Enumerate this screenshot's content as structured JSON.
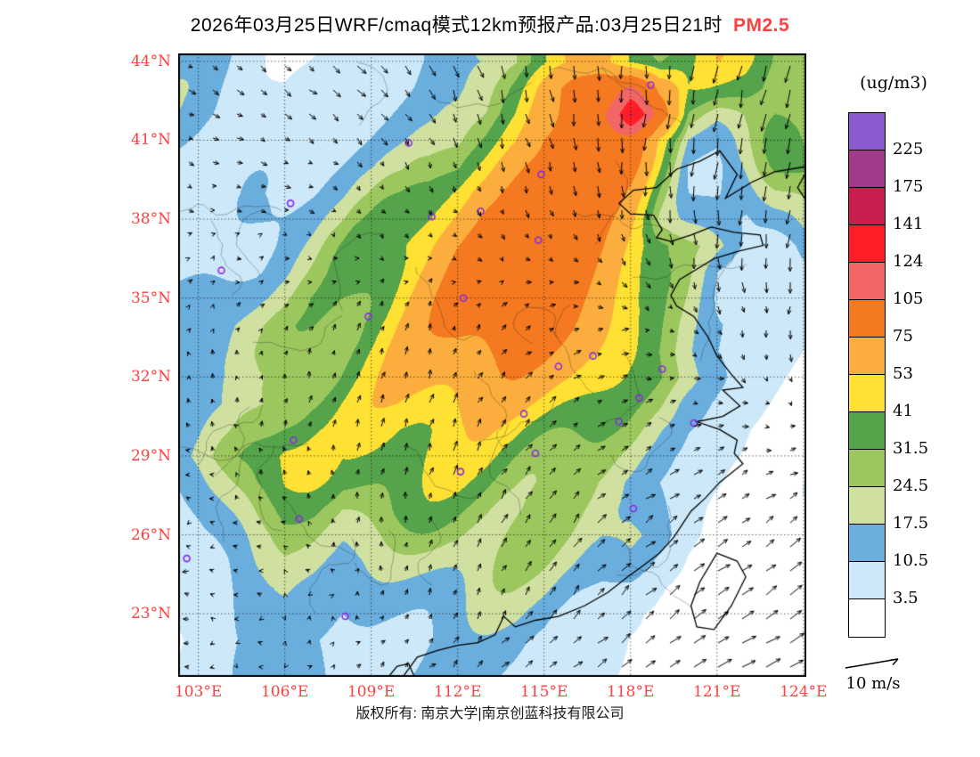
{
  "title": {
    "main": "2026年03月25日WRF/cmaq模式12km预报产品:03月25日21时",
    "species": "PM2.5"
  },
  "footer": {
    "copyright": "版权所有: 南京大学|南京创蓝科技有限公司"
  },
  "colors": {
    "accent_red": "#ff4040",
    "station_purple": "#8a2be2",
    "map_border": "#000000"
  },
  "colorbar": {
    "unit_label": "(ug/m3)",
    "tick_labels": [
      "225",
      "175",
      "141",
      "124",
      "105",
      "75",
      "53",
      "41",
      "31.5",
      "24.5",
      "17.5",
      "10.5",
      "3.5"
    ]
  },
  "axes": {
    "lat_ticks": [
      "44°N",
      "41°N",
      "38°N",
      "35°N",
      "32°N",
      "29°N",
      "26°N",
      "23°N"
    ],
    "lon_ticks": [
      "103°E",
      "106°E",
      "109°E",
      "112°E",
      "115°E",
      "118°E",
      "121°E",
      "124°E"
    ]
  },
  "wind_legend": {
    "label": "10 m/s"
  },
  "chart_data": {
    "type": "heatmap",
    "subtype": "filled-contour-forecast-map-with-wind-vectors",
    "title": "2026年03月25日WRF/cmaq模式12km预报产品:03月25日21时 PM2.5",
    "units": "ug/m3",
    "legend_position": "right",
    "lon_range": [
      102.3,
      124.1
    ],
    "lat_range": [
      20.6,
      44.3
    ],
    "gridline_lons": [
      103,
      106,
      109,
      112,
      115,
      118,
      121,
      124
    ],
    "gridline_lats": [
      44,
      41,
      38,
      35,
      32,
      29,
      26,
      23
    ],
    "levels": [
      3.5,
      10.5,
      17.5,
      24.5,
      31.5,
      41,
      53,
      75,
      105,
      124,
      141,
      175,
      225
    ],
    "level_colors": [
      "#ffffff",
      "#cde9f9",
      "#6aaede",
      "#cfe0a0",
      "#9cc75e",
      "#55a34a",
      "#ffe133",
      "#fbae3d",
      "#f47920",
      "#f26666",
      "#ff1e28",
      "#c81e4e",
      "#a23a8c",
      "#8a5bd0"
    ],
    "grid_lon0": 102,
    "grid_lat0": 44,
    "grid_step": 1,
    "pm25_grid": [
      [
        12,
        11,
        9,
        6,
        4,
        4,
        5,
        8,
        10,
        12,
        14,
        18,
        25,
        38,
        52,
        60,
        45,
        30,
        28,
        42,
        46,
        38,
        30
      ],
      [
        13,
        12,
        9,
        6,
        4,
        5,
        6,
        8,
        10,
        13,
        16,
        24,
        38,
        60,
        85,
        105,
        115,
        55,
        30,
        34,
        40,
        34,
        27
      ],
      [
        14,
        12,
        10,
        7,
        5,
        5,
        6,
        9,
        12,
        15,
        20,
        30,
        48,
        72,
        95,
        115,
        132,
        70,
        24,
        20,
        28,
        30,
        24
      ],
      [
        12,
        11,
        9,
        7,
        6,
        6,
        8,
        11,
        14,
        18,
        26,
        42,
        62,
        88,
        104,
        100,
        80,
        40,
        16,
        13,
        22,
        32,
        28
      ],
      [
        10,
        10,
        9,
        8,
        7,
        8,
        11,
        14,
        18,
        26,
        36,
        56,
        80,
        98,
        104,
        94,
        74,
        40,
        12,
        10,
        16,
        28,
        33
      ],
      [
        8,
        9,
        9,
        9,
        9,
        11,
        14,
        19,
        26,
        36,
        50,
        70,
        88,
        98,
        96,
        86,
        66,
        35,
        14,
        10,
        11,
        22,
        28
      ],
      [
        7,
        8,
        9,
        11,
        13,
        15,
        19,
        26,
        36,
        46,
        60,
        78,
        88,
        92,
        88,
        78,
        62,
        30,
        20,
        12,
        9,
        16,
        22
      ],
      [
        7,
        8,
        9,
        11,
        15,
        19,
        26,
        36,
        46,
        56,
        70,
        83,
        88,
        88,
        83,
        73,
        58,
        43,
        29,
        20,
        11,
        9,
        13
      ],
      [
        9,
        10,
        11,
        13,
        17,
        23,
        31,
        41,
        51,
        61,
        74,
        83,
        86,
        86,
        78,
        68,
        53,
        39,
        27,
        12,
        8,
        8,
        7
      ],
      [
        11,
        13,
        15,
        17,
        21,
        29,
        36,
        46,
        56,
        66,
        77,
        83,
        83,
        80,
        73,
        63,
        48,
        34,
        24,
        12,
        8,
        7,
        6
      ],
      [
        13,
        15,
        17,
        21,
        26,
        33,
        41,
        51,
        59,
        68,
        77,
        81,
        81,
        77,
        69,
        59,
        44,
        31,
        21,
        14,
        9,
        6,
        5
      ],
      [
        11,
        13,
        16,
        21,
        27,
        35,
        43,
        51,
        59,
        66,
        74,
        77,
        77,
        71,
        64,
        54,
        41,
        29,
        19,
        11,
        7,
        5,
        4
      ],
      [
        9,
        11,
        15,
        19,
        26,
        33,
        41,
        49,
        56,
        62,
        68,
        71,
        69,
        64,
        57,
        47,
        37,
        30,
        20,
        10,
        5,
        4,
        3
      ],
      [
        9,
        11,
        15,
        21,
        29,
        36,
        41,
        46,
        51,
        56,
        60,
        62,
        60,
        55,
        48,
        40,
        32,
        24,
        12,
        7,
        4,
        3,
        2
      ],
      [
        11,
        15,
        21,
        29,
        36,
        39,
        39,
        41,
        43,
        46,
        50,
        52,
        50,
        45,
        40,
        34,
        27,
        17,
        9,
        5,
        3,
        2,
        2
      ],
      [
        13,
        19,
        29,
        39,
        46,
        41,
        33,
        36,
        39,
        41,
        43,
        45,
        42,
        38,
        33,
        28,
        21,
        13,
        7,
        4,
        3,
        2,
        2
      ],
      [
        11,
        16,
        26,
        36,
        41,
        36,
        29,
        31,
        33,
        36,
        38,
        38,
        36,
        32,
        28,
        23,
        17,
        11,
        6,
        4,
        2,
        2,
        2
      ],
      [
        9,
        13,
        21,
        29,
        33,
        29,
        23,
        26,
        29,
        31,
        32,
        32,
        30,
        28,
        24,
        21,
        18,
        13,
        6,
        3,
        2,
        2,
        2
      ],
      [
        7,
        11,
        16,
        23,
        27,
        25,
        19,
        21,
        23,
        26,
        28,
        28,
        26,
        24,
        21,
        19,
        22,
        15,
        6,
        3,
        2,
        2,
        2
      ],
      [
        6,
        9,
        13,
        19,
        23,
        21,
        16,
        17,
        19,
        21,
        23,
        24,
        22,
        20,
        17,
        14,
        16,
        9,
        4,
        2,
        2,
        2,
        2
      ],
      [
        5,
        7,
        11,
        15,
        19,
        17,
        13,
        15,
        16,
        17,
        19,
        20,
        18,
        16,
        12,
        10,
        8,
        4,
        2,
        2,
        2,
        2,
        2
      ],
      [
        4,
        6,
        9,
        13,
        16,
        15,
        11,
        13,
        14,
        15,
        16,
        16,
        15,
        12,
        8,
        5,
        3,
        2,
        2,
        2,
        2,
        2,
        2
      ],
      [
        3,
        5,
        7,
        11,
        13,
        12,
        9,
        11,
        12,
        13,
        13,
        13,
        12,
        10,
        6,
        4,
        2,
        2,
        2,
        2,
        2,
        2,
        2
      ]
    ],
    "wind": {
      "ref_speed_ms": 10,
      "u": [
        [
          2,
          2,
          3,
          2,
          1,
          0,
          -1,
          -2
        ],
        [
          2,
          2,
          2,
          1,
          1,
          0,
          -1,
          -1
        ],
        [
          1,
          1,
          1,
          1,
          1,
          1,
          0,
          -1
        ],
        [
          0,
          1,
          1,
          1,
          2,
          2,
          1,
          0
        ],
        [
          -1,
          0,
          1,
          1,
          2,
          2,
          2,
          1
        ],
        [
          -1,
          -1,
          0,
          1,
          2,
          3,
          3,
          3
        ],
        [
          -2,
          -1,
          0,
          1,
          2,
          3,
          4,
          4
        ],
        [
          -1,
          0,
          1,
          2,
          3,
          4,
          5,
          5
        ]
      ],
      "v": [
        [
          -1,
          -2,
          -3,
          -4,
          -5,
          -5,
          -6,
          -6
        ],
        [
          -1,
          -1,
          -2,
          -3,
          -4,
          -5,
          -6,
          -6
        ],
        [
          0,
          0,
          -1,
          -1,
          -2,
          -3,
          -5,
          -5
        ],
        [
          1,
          1,
          2,
          2,
          1,
          0,
          -2,
          -3
        ],
        [
          1,
          2,
          3,
          3,
          2,
          1,
          0,
          -1
        ],
        [
          0,
          1,
          2,
          3,
          3,
          2,
          2,
          2
        ],
        [
          0,
          0,
          1,
          2,
          3,
          3,
          3,
          3
        ],
        [
          0,
          0,
          1,
          2,
          2,
          3,
          3,
          3
        ]
      ]
    },
    "stations_lonlat": [
      [
        118.7,
        43.1
      ],
      [
        110.3,
        40.9
      ],
      [
        114.9,
        39.7
      ],
      [
        106.2,
        38.6
      ],
      [
        112.8,
        38.3
      ],
      [
        111.1,
        38.1
      ],
      [
        114.8,
        37.2
      ],
      [
        103.8,
        36.05
      ],
      [
        112.2,
        35.0
      ],
      [
        108.9,
        34.3
      ],
      [
        116.7,
        32.8
      ],
      [
        115.5,
        32.4
      ],
      [
        119.1,
        32.3
      ],
      [
        118.3,
        31.2
      ],
      [
        117.6,
        30.3
      ],
      [
        114.3,
        30.6
      ],
      [
        120.2,
        30.25
      ],
      [
        106.3,
        29.6
      ],
      [
        114.7,
        29.1
      ],
      [
        112.1,
        28.4
      ],
      [
        118.1,
        27.0
      ],
      [
        106.5,
        26.6
      ],
      [
        102.6,
        25.1
      ],
      [
        108.1,
        22.9
      ]
    ],
    "coastlines": [
      [
        [
          124.1,
          40.0
        ],
        [
          123.0,
          39.8
        ],
        [
          122.2,
          39.4
        ],
        [
          121.3,
          38.8
        ],
        [
          121.7,
          39.7
        ],
        [
          121.1,
          40.6
        ],
        [
          120.4,
          40.2
        ],
        [
          119.6,
          39.9
        ],
        [
          118.9,
          39.2
        ],
        [
          118.1,
          39.1
        ],
        [
          117.6,
          38.6
        ],
        [
          118.0,
          38.2
        ],
        [
          118.8,
          38.15
        ],
        [
          119.1,
          37.6
        ],
        [
          118.9,
          37.3
        ],
        [
          119.4,
          37.15
        ],
        [
          120.1,
          37.4
        ],
        [
          120.8,
          37.7
        ],
        [
          121.6,
          37.5
        ],
        [
          122.5,
          37.4
        ],
        [
          122.6,
          37.0
        ],
        [
          121.8,
          36.8
        ],
        [
          120.9,
          36.5
        ],
        [
          120.3,
          36.1
        ],
        [
          119.7,
          35.7
        ],
        [
          119.4,
          35.1
        ],
        [
          119.6,
          34.7
        ],
        [
          120.2,
          34.3
        ],
        [
          120.7,
          33.5
        ],
        [
          121.0,
          32.8
        ],
        [
          121.5,
          32.1
        ],
        [
          121.9,
          31.6
        ],
        [
          121.2,
          31.5
        ],
        [
          121.8,
          30.9
        ],
        [
          121.2,
          30.5
        ],
        [
          120.3,
          30.3
        ],
        [
          121.1,
          30.0
        ],
        [
          121.7,
          29.6
        ],
        [
          121.6,
          29.1
        ],
        [
          121.9,
          28.7
        ],
        [
          121.1,
          28.0
        ],
        [
          120.6,
          27.4
        ],
        [
          120.1,
          26.9
        ],
        [
          119.8,
          26.4
        ],
        [
          119.5,
          25.9
        ],
        [
          119.0,
          25.3
        ],
        [
          118.4,
          24.8
        ],
        [
          117.9,
          24.4
        ],
        [
          117.2,
          23.8
        ],
        [
          116.4,
          23.3
        ],
        [
          115.5,
          22.9
        ],
        [
          114.7,
          22.75
        ],
        [
          114.0,
          22.5
        ],
        [
          113.6,
          22.9
        ],
        [
          113.3,
          22.2
        ],
        [
          112.7,
          21.9
        ],
        [
          112.0,
          21.8
        ],
        [
          111.3,
          21.6
        ],
        [
          110.6,
          21.35
        ],
        [
          110.3,
          20.9
        ],
        [
          110.1,
          20.6
        ]
      ],
      [
        [
          121.0,
          25.3
        ],
        [
          121.7,
          25.0
        ],
        [
          122.0,
          24.4
        ],
        [
          121.5,
          23.3
        ],
        [
          120.9,
          22.4
        ],
        [
          120.3,
          22.5
        ],
        [
          120.1,
          23.3
        ],
        [
          120.4,
          24.2
        ],
        [
          121.0,
          25.3
        ]
      ],
      [
        [
          124.1,
          39.8
        ],
        [
          123.8,
          39.2
        ],
        [
          124.1,
          38.7
        ]
      ],
      [
        [
          109.6,
          20.6
        ],
        [
          109.9,
          21.0
        ],
        [
          110.3,
          21.1
        ],
        [
          110.5,
          20.6
        ]
      ]
    ]
  }
}
